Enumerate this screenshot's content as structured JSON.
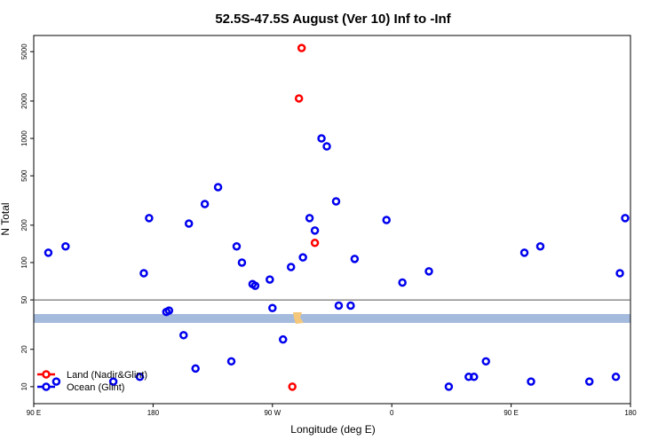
{
  "chart_data": {
    "type": "scatter",
    "title": "52.5S-47.5S August (Ver 10)   Inf to -Inf",
    "x_label": "Longitude (deg E)",
    "y_label": "N Total",
    "xlim": [
      90,
      540
    ],
    "xticks": [
      {
        "value": 90,
        "label": "90 E"
      },
      {
        "value": 180,
        "label": "180"
      },
      {
        "value": 270,
        "label": "90 W"
      },
      {
        "value": 360,
        "label": "0"
      },
      {
        "value": 450,
        "label": "90 E"
      },
      {
        "value": 540,
        "label": "180"
      }
    ],
    "ylim": [
      7.3,
      6750
    ],
    "log_y": true,
    "yticks": [
      10,
      20,
      50,
      100,
      200,
      500,
      1000,
      2000,
      5000
    ],
    "reference_line": 50,
    "legend": "bottom-left",
    "series": [
      {
        "name": "Land (Nadir&Glint)",
        "color": "#ff0000",
        "x": [
          292,
          290,
          302,
          285
        ],
        "values": [
          5350,
          2100,
          144,
          10
        ]
      },
      {
        "name": "Ocean (Glint)",
        "color": "#0000ee",
        "x": [
          101,
          114,
          107,
          150,
          170,
          173,
          177,
          190,
          192,
          203,
          207,
          212,
          219,
          229,
          239,
          243,
          247,
          255,
          257,
          268,
          270,
          278,
          284,
          293,
          298,
          302,
          307,
          311,
          318,
          320,
          329,
          332,
          356,
          368,
          388,
          403,
          418,
          422,
          431,
          460,
          465,
          472,
          509,
          529,
          532,
          536
        ],
        "values": [
          120,
          135,
          11,
          11,
          12,
          82,
          228,
          40,
          41,
          26,
          206,
          14,
          296,
          405,
          16,
          135,
          100,
          67,
          65,
          73,
          43,
          24,
          92,
          110,
          228,
          181,
          1000,
          863,
          311,
          45,
          45,
          107,
          220,
          69,
          85,
          10,
          12,
          12,
          16,
          120,
          11,
          135,
          11,
          12,
          82,
          228
        ]
      }
    ]
  }
}
